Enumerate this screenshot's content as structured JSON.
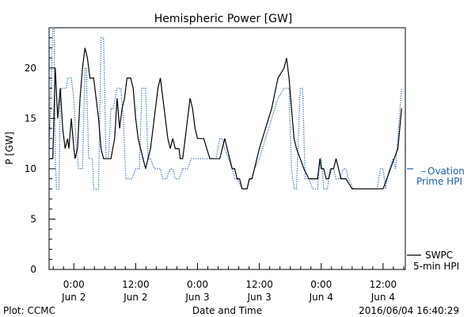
{
  "chart_data": {
    "type": "line",
    "title": "Hemispheric Power [GW]",
    "ylabel": "P [GW]",
    "xlabel": "Date and Time",
    "ylim": [
      0,
      24
    ],
    "xlim": [
      -0.2,
      2.68
    ],
    "x_unit": "days since 2016-06-02 00:00 UT",
    "yticks": [
      0,
      5,
      10,
      15,
      20
    ],
    "xticks": [
      {
        "x": 0.0,
        "line1": "0:00",
        "line2": "Jun 2"
      },
      {
        "x": 0.5,
        "line1": "12:00",
        "line2": "Jun 2"
      },
      {
        "x": 1.0,
        "line1": "0:00",
        "line2": "Jun 3"
      },
      {
        "x": 1.5,
        "line1": "12:00",
        "line2": "Jun 3"
      },
      {
        "x": 2.0,
        "line1": "0:00",
        "line2": "Jun 4"
      },
      {
        "x": 2.5,
        "line1": "12:00",
        "line2": "Jun 4"
      }
    ],
    "grid": false,
    "series": [
      {
        "name": "Ovation Prime HPI",
        "style": "dotted",
        "color": "#1f5fb4",
        "points": [
          [
            -0.2,
            11
          ],
          [
            -0.17,
            24
          ],
          [
            -0.16,
            24
          ],
          [
            -0.15,
            11
          ],
          [
            -0.14,
            8
          ],
          [
            -0.12,
            8
          ],
          [
            -0.11,
            17
          ],
          [
            -0.1,
            18
          ],
          [
            -0.06,
            18
          ],
          [
            -0.05,
            19
          ],
          [
            -0.02,
            19
          ],
          [
            0.0,
            17
          ],
          [
            0.02,
            12
          ],
          [
            0.04,
            10
          ],
          [
            0.07,
            10
          ],
          [
            0.09,
            20
          ],
          [
            0.1,
            20
          ],
          [
            0.12,
            11
          ],
          [
            0.15,
            11
          ],
          [
            0.16,
            8
          ],
          [
            0.2,
            8
          ],
          [
            0.22,
            23
          ],
          [
            0.24,
            23
          ],
          [
            0.26,
            11
          ],
          [
            0.28,
            11
          ],
          [
            0.3,
            16
          ],
          [
            0.32,
            16
          ],
          [
            0.35,
            18
          ],
          [
            0.38,
            18
          ],
          [
            0.4,
            15
          ],
          [
            0.42,
            9
          ],
          [
            0.47,
            9
          ],
          [
            0.5,
            10
          ],
          [
            0.53,
            10
          ],
          [
            0.55,
            18
          ],
          [
            0.58,
            18
          ],
          [
            0.6,
            11
          ],
          [
            0.62,
            11
          ],
          [
            0.65,
            10
          ],
          [
            0.7,
            10
          ],
          [
            0.72,
            9
          ],
          [
            0.75,
            9
          ],
          [
            0.78,
            10
          ],
          [
            0.8,
            10
          ],
          [
            0.82,
            9
          ],
          [
            0.85,
            9
          ],
          [
            0.88,
            10
          ],
          [
            0.92,
            10
          ],
          [
            0.95,
            11
          ],
          [
            1.1,
            11
          ],
          [
            1.15,
            11
          ],
          [
            1.18,
            13
          ],
          [
            1.2,
            13
          ],
          [
            1.22,
            12
          ],
          [
            1.25,
            11
          ],
          [
            1.28,
            10
          ],
          [
            1.3,
            9
          ],
          [
            1.32,
            9
          ],
          [
            1.36,
            8
          ],
          [
            1.4,
            8
          ],
          [
            1.42,
            9
          ],
          [
            1.44,
            9
          ],
          [
            1.46,
            10
          ],
          [
            1.5,
            11
          ],
          [
            1.55,
            13
          ],
          [
            1.6,
            15
          ],
          [
            1.65,
            17
          ],
          [
            1.7,
            18
          ],
          [
            1.74,
            18
          ],
          [
            1.76,
            10
          ],
          [
            1.78,
            8
          ],
          [
            1.8,
            8
          ],
          [
            1.83,
            18
          ],
          [
            1.85,
            18
          ],
          [
            1.87,
            9
          ],
          [
            1.9,
            9
          ],
          [
            1.93,
            8
          ],
          [
            1.97,
            8
          ],
          [
            1.99,
            11
          ],
          [
            2.0,
            11
          ],
          [
            2.02,
            8
          ],
          [
            2.05,
            8
          ],
          [
            2.07,
            10
          ],
          [
            2.1,
            10
          ],
          [
            2.12,
            9
          ],
          [
            2.15,
            9
          ],
          [
            2.18,
            10
          ],
          [
            2.2,
            10
          ],
          [
            2.22,
            9
          ],
          [
            2.26,
            8
          ],
          [
            2.45,
            8
          ],
          [
            2.48,
            10
          ],
          [
            2.5,
            10
          ],
          [
            2.52,
            8
          ],
          [
            2.55,
            10
          ],
          [
            2.58,
            11
          ],
          [
            2.6,
            10
          ],
          [
            2.65,
            18
          ]
        ]
      },
      {
        "name": "SWPC 5-min HPI",
        "style": "solid",
        "color": "#000000",
        "points": [
          [
            -0.2,
            11
          ],
          [
            -0.17,
            11
          ],
          [
            -0.15,
            20
          ],
          [
            -0.13,
            15
          ],
          [
            -0.11,
            18
          ],
          [
            -0.09,
            14
          ],
          [
            -0.07,
            12
          ],
          [
            -0.05,
            13
          ],
          [
            -0.04,
            12
          ],
          [
            -0.02,
            15
          ],
          [
            0.0,
            12
          ],
          [
            0.01,
            11
          ],
          [
            0.03,
            12
          ],
          [
            0.05,
            17
          ],
          [
            0.07,
            20
          ],
          [
            0.09,
            22
          ],
          [
            0.11,
            21
          ],
          [
            0.13,
            19
          ],
          [
            0.16,
            19
          ],
          [
            0.18,
            17
          ],
          [
            0.2,
            15
          ],
          [
            0.22,
            12
          ],
          [
            0.24,
            11
          ],
          [
            0.3,
            11
          ],
          [
            0.33,
            13
          ],
          [
            0.35,
            17
          ],
          [
            0.37,
            14
          ],
          [
            0.39,
            16
          ],
          [
            0.41,
            17
          ],
          [
            0.43,
            19
          ],
          [
            0.46,
            19
          ],
          [
            0.48,
            18
          ],
          [
            0.5,
            15
          ],
          [
            0.52,
            13
          ],
          [
            0.54,
            12
          ],
          [
            0.56,
            11
          ],
          [
            0.58,
            10
          ],
          [
            0.6,
            11
          ],
          [
            0.62,
            12
          ],
          [
            0.64,
            14
          ],
          [
            0.66,
            16
          ],
          [
            0.68,
            18
          ],
          [
            0.7,
            19
          ],
          [
            0.72,
            17
          ],
          [
            0.74,
            15
          ],
          [
            0.76,
            13
          ],
          [
            0.78,
            12
          ],
          [
            0.8,
            13
          ],
          [
            0.82,
            12
          ],
          [
            0.85,
            12
          ],
          [
            0.86,
            11
          ],
          [
            0.88,
            11
          ],
          [
            0.9,
            13
          ],
          [
            0.92,
            15
          ],
          [
            0.94,
            17
          ],
          [
            0.96,
            16
          ],
          [
            0.98,
            14
          ],
          [
            1.0,
            13
          ],
          [
            1.05,
            13
          ],
          [
            1.1,
            11
          ],
          [
            1.18,
            11
          ],
          [
            1.2,
            12
          ],
          [
            1.22,
            13
          ],
          [
            1.24,
            12
          ],
          [
            1.26,
            11
          ],
          [
            1.28,
            10
          ],
          [
            1.3,
            10
          ],
          [
            1.32,
            9
          ],
          [
            1.34,
            9
          ],
          [
            1.36,
            8
          ],
          [
            1.4,
            8
          ],
          [
            1.42,
            9
          ],
          [
            1.44,
            9
          ],
          [
            1.46,
            10
          ],
          [
            1.48,
            11
          ],
          [
            1.5,
            12
          ],
          [
            1.55,
            14
          ],
          [
            1.6,
            16
          ],
          [
            1.65,
            19
          ],
          [
            1.7,
            20
          ],
          [
            1.72,
            21
          ],
          [
            1.74,
            19
          ],
          [
            1.76,
            16
          ],
          [
            1.78,
            13
          ],
          [
            1.8,
            12
          ],
          [
            1.83,
            11
          ],
          [
            1.86,
            10
          ],
          [
            1.9,
            9
          ],
          [
            1.94,
            9
          ],
          [
            1.97,
            9
          ],
          [
            1.99,
            11
          ],
          [
            2.0,
            10
          ],
          [
            2.02,
            10
          ],
          [
            2.04,
            9
          ],
          [
            2.06,
            9
          ],
          [
            2.08,
            10
          ],
          [
            2.1,
            10
          ],
          [
            2.12,
            11
          ],
          [
            2.14,
            10
          ],
          [
            2.16,
            9
          ],
          [
            2.2,
            9
          ],
          [
            2.25,
            8
          ],
          [
            2.5,
            8
          ],
          [
            2.53,
            9
          ],
          [
            2.56,
            10
          ],
          [
            2.59,
            11
          ],
          [
            2.62,
            12
          ],
          [
            2.65,
            16
          ]
        ]
      }
    ],
    "legend": {
      "entries": [
        {
          "series": "Ovation Prime HPI",
          "line1": "Ovation",
          "line2": "Prime HPI"
        },
        {
          "series": "SWPC 5-min HPI",
          "line1": "SWPC",
          "line2": "5-min HPI"
        }
      ],
      "placement": "right"
    }
  },
  "footer": {
    "left": "Plot: CCMC",
    "center": "Date and Time",
    "right": "2016/06/04 16:40:29"
  }
}
